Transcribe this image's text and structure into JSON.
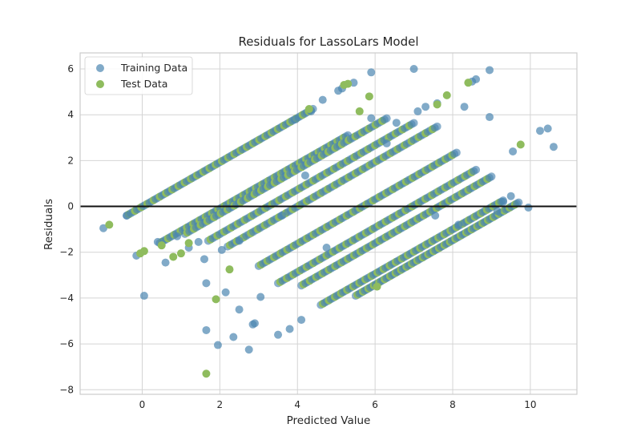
{
  "chart_data": {
    "type": "scatter",
    "title": "Residuals for LassoLars Model",
    "xlabel": "Predicted Value",
    "ylabel": "Residuals",
    "xlim": [
      -1.6,
      11.2
    ],
    "ylim": [
      -8.2,
      6.7
    ],
    "xticks": [
      0,
      2,
      4,
      6,
      8,
      10
    ],
    "yticks": [
      -8,
      -6,
      -4,
      -2,
      0,
      2,
      4,
      6
    ],
    "grid": true,
    "legend_position": "top-left",
    "zero_line": 0,
    "colors": {
      "train": "#4c86b0",
      "test": "#8fbc5e",
      "zero_line": "#111111",
      "grid": "#d4d4d4",
      "frame": "#cccccc"
    },
    "bands": {
      "description_offsets": [
        0,
        -1,
        -2,
        -3,
        -4,
        -5,
        -6,
        -7,
        -8,
        -9
      ],
      "slope": 0.97
    },
    "series": [
      {
        "name": "Training Data",
        "points": [
          [
            -1.0,
            -0.95
          ],
          [
            -0.4,
            -0.4
          ],
          [
            -0.15,
            -2.15
          ],
          [
            0.05,
            -3.9
          ],
          [
            0.4,
            -1.55
          ],
          [
            0.6,
            -2.45
          ],
          [
            0.9,
            -1.3
          ],
          [
            1.2,
            -1.8
          ],
          [
            1.45,
            -1.55
          ],
          [
            1.6,
            -2.3
          ],
          [
            1.65,
            -3.35
          ],
          [
            1.65,
            -5.4
          ],
          [
            1.95,
            -6.05
          ],
          [
            2.05,
            -1.9
          ],
          [
            2.15,
            -3.75
          ],
          [
            2.35,
            -5.7
          ],
          [
            2.5,
            -4.5
          ],
          [
            2.5,
            -1.5
          ],
          [
            2.75,
            -6.25
          ],
          [
            2.85,
            -5.15
          ],
          [
            2.9,
            -5.1
          ],
          [
            3.05,
            -3.95
          ],
          [
            3.5,
            -5.6
          ],
          [
            3.6,
            -0.4
          ],
          [
            3.8,
            -5.35
          ],
          [
            3.95,
            3.8
          ],
          [
            4.1,
            -4.95
          ],
          [
            4.2,
            1.35
          ],
          [
            4.35,
            4.15
          ],
          [
            4.65,
            4.65
          ],
          [
            4.75,
            -1.8
          ],
          [
            5.05,
            5.05
          ],
          [
            5.15,
            5.15
          ],
          [
            5.45,
            5.4
          ],
          [
            5.9,
            5.85
          ],
          [
            5.9,
            3.85
          ],
          [
            6.3,
            2.75
          ],
          [
            6.55,
            3.65
          ],
          [
            7.0,
            6.0
          ],
          [
            7.1,
            4.15
          ],
          [
            7.3,
            4.35
          ],
          [
            7.55,
            -0.4
          ],
          [
            7.6,
            4.5
          ],
          [
            8.15,
            -0.8
          ],
          [
            8.3,
            4.35
          ],
          [
            8.5,
            5.45
          ],
          [
            8.6,
            5.55
          ],
          [
            8.95,
            3.9
          ],
          [
            8.95,
            5.95
          ],
          [
            9.15,
            -0.2
          ],
          [
            9.3,
            0.2
          ],
          [
            9.5,
            0.45
          ],
          [
            9.55,
            2.4
          ],
          [
            9.95,
            -0.05
          ],
          [
            10.25,
            3.3
          ],
          [
            10.45,
            3.4
          ],
          [
            10.6,
            2.6
          ]
        ]
      },
      {
        "name": "Test Data",
        "points": [
          [
            -0.85,
            -0.8
          ],
          [
            -0.05,
            -2.05
          ],
          [
            0.05,
            -1.95
          ],
          [
            0.5,
            -1.7
          ],
          [
            0.8,
            -2.2
          ],
          [
            1.0,
            -2.05
          ],
          [
            1.2,
            -1.6
          ],
          [
            1.65,
            -7.3
          ],
          [
            1.9,
            -4.05
          ],
          [
            2.25,
            -2.75
          ],
          [
            4.3,
            4.25
          ],
          [
            5.2,
            5.3
          ],
          [
            5.3,
            5.35
          ],
          [
            5.6,
            4.15
          ],
          [
            5.85,
            4.8
          ],
          [
            6.05,
            -3.5
          ],
          [
            7.6,
            4.45
          ],
          [
            7.85,
            4.85
          ],
          [
            8.4,
            5.4
          ],
          [
            9.75,
            2.7
          ]
        ]
      }
    ]
  }
}
